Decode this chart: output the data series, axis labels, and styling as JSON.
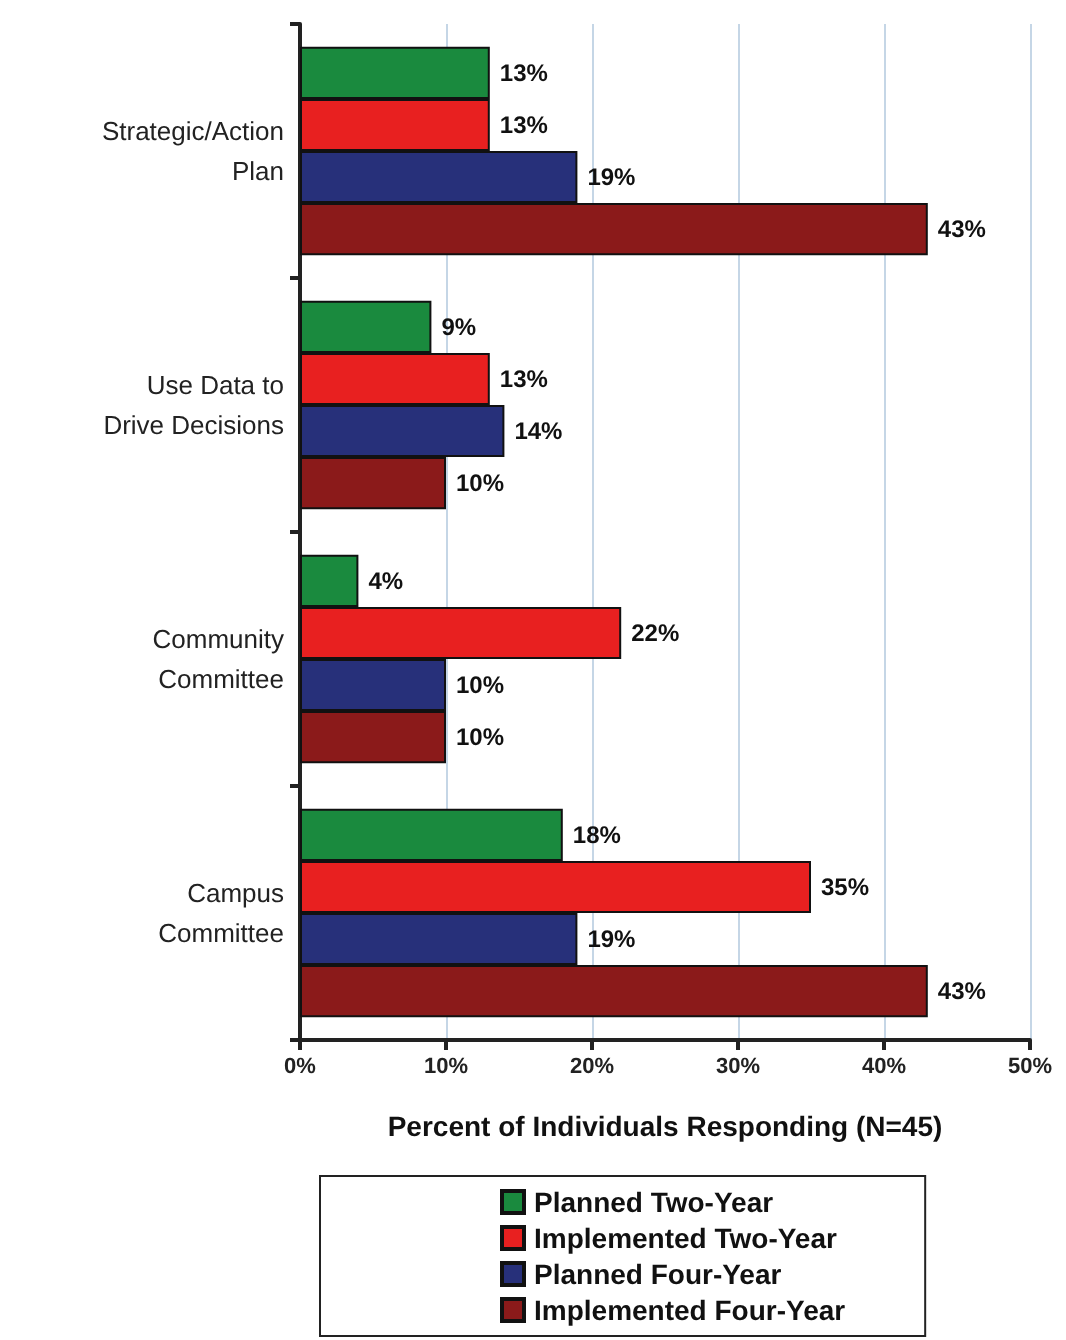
{
  "chart_data": {
    "type": "bar",
    "orientation": "horizontal",
    "categories": [
      "Strategic/Action\nPlan",
      "Use Data to\nDrive Decisions",
      "Community\nCommittee",
      "Campus\nCommittee"
    ],
    "series": [
      {
        "name": "Planned Two-Year",
        "color": "#1a8a3e",
        "values": [
          13,
          9,
          4,
          18
        ],
        "value_labels": [
          "13%",
          "9%",
          "4%",
          "18%"
        ]
      },
      {
        "name": "Implemented Two-Year",
        "color": "#e82020",
        "values": [
          13,
          13,
          22,
          35
        ],
        "value_labels": [
          "13%",
          "13%",
          "22%",
          "35%"
        ]
      },
      {
        "name": "Planned Four-Year",
        "color": "#27307a",
        "values": [
          19,
          14,
          10,
          19
        ],
        "value_labels": [
          "19%",
          "14%",
          "10%",
          "19%"
        ]
      },
      {
        "name": "Implemented Four-Year",
        "color": "#8b1a1a",
        "values": [
          43,
          10,
          10,
          43
        ],
        "value_labels": [
          "43%",
          "10%",
          "10%",
          "43%"
        ]
      }
    ],
    "xlabel": "Percent of Individuals Responding (N=45)",
    "xlim": [
      0,
      50
    ],
    "xticks": [
      {
        "value": 0,
        "label": "0%"
      },
      {
        "value": 10,
        "label": "10%"
      },
      {
        "value": 20,
        "label": "20%"
      },
      {
        "value": 30,
        "label": "30%"
      },
      {
        "value": 40,
        "label": "40%"
      },
      {
        "value": 50,
        "label": "50%"
      }
    ],
    "grid": "x",
    "legend": "bottom"
  }
}
